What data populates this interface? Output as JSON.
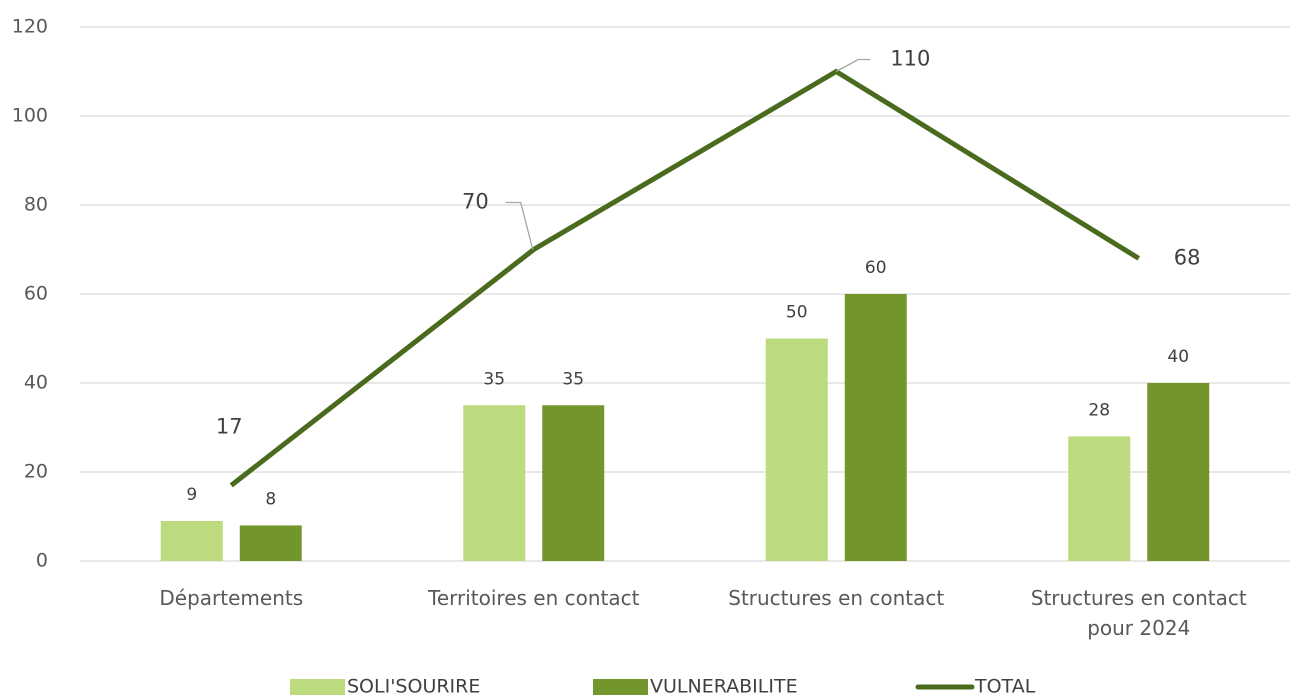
{
  "chart_data": {
    "type": "bar_line",
    "categories": [
      "Départements",
      "Territoires en contact",
      "Structures en contact",
      "Structures en contact pour 2024"
    ],
    "series": [
      {
        "name": "SOLI'SOURIRE",
        "type": "bar",
        "color": "#bcdb7e",
        "values": [
          9,
          35,
          50,
          28
        ]
      },
      {
        "name": "VULNERABILITE",
        "type": "bar",
        "color": "#72962c",
        "values": [
          8,
          35,
          60,
          40
        ]
      },
      {
        "name": "TOTAL",
        "type": "line",
        "color": "#4a6b1d",
        "values": [
          17,
          70,
          110,
          68
        ]
      }
    ],
    "ylim": [
      0,
      120
    ],
    "yticks": [
      0,
      20,
      40,
      60,
      80,
      100,
      120
    ],
    "grid": true,
    "legend": "bottom"
  }
}
